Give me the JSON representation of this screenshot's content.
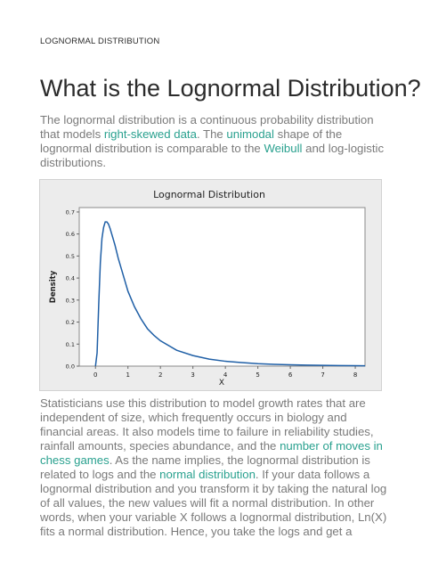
{
  "header": {
    "section_label": "LOGNORMAL DISTRIBUTION"
  },
  "title": "What is the Lognormal Distribution?",
  "intro": {
    "t1": "The lognormal distribution is a continuous probability distribution that models ",
    "link1": "right-skewed data",
    "t2": ". The ",
    "link2": "unimodal",
    "t3": " shape of the lognormal distribution is comparable to the ",
    "link3": "Weibull",
    "t4": " and log-logistic distributions."
  },
  "body": {
    "t1": "Statisticians use this distribution to model growth rates that are independent of size, which frequently occurs in biology and financial areas. It also models time to failure in reliability studies, rainfall amounts, species abundance, and the ",
    "link1": "number of moves in chess games",
    "t2": ". As the name implies, the lognormal distribution is related to logs and the ",
    "link2": "normal distribution",
    "t3": ". If your data follows a lognormal distribution and you transform it by taking the natural log of all values, the new values will fit a normal distribution. In other words, when your variable X follows a lognormal distribution, Ln(X) fits a normal distribution. Hence, you take the logs and get a"
  },
  "colors": {
    "link": "#2aa18f",
    "curve": "#1f5fa6",
    "chart_bg": "#ececec"
  },
  "chart_data": {
    "type": "line",
    "title": "Lognormal Distribution",
    "xlabel": "X",
    "ylabel": "Density",
    "xlim": [
      -0.5,
      8.3
    ],
    "ylim": [
      0,
      0.72
    ],
    "xticks": [
      "0",
      "1",
      "2",
      "3",
      "4",
      "5",
      "6",
      "7",
      "8"
    ],
    "xtick_values": [
      0,
      1,
      2,
      3,
      4,
      5,
      6,
      7,
      8
    ],
    "yticks": [
      "0.0",
      "0.1",
      "0.2",
      "0.3",
      "0.4",
      "0.5",
      "0.6",
      "0.7"
    ],
    "ytick_values": [
      0,
      0.1,
      0.2,
      0.3,
      0.4,
      0.5,
      0.6,
      0.7
    ],
    "grid": false,
    "series": [
      {
        "x": [
          0.0,
          0.05,
          0.1,
          0.15,
          0.2,
          0.25,
          0.3,
          0.35,
          0.4,
          0.45,
          0.5,
          0.6,
          0.7,
          0.8,
          0.9,
          1.0,
          1.2,
          1.4,
          1.6,
          1.8,
          2.0,
          2.5,
          3.0,
          3.5,
          4.0,
          4.5,
          5.0,
          5.5,
          6.0,
          6.5,
          7.0,
          7.5,
          8.0,
          8.3
        ],
        "y": [
          0.0,
          0.06,
          0.28,
          0.47,
          0.58,
          0.63,
          0.655,
          0.655,
          0.645,
          0.625,
          0.6,
          0.55,
          0.49,
          0.44,
          0.39,
          0.34,
          0.27,
          0.215,
          0.17,
          0.14,
          0.115,
          0.072,
          0.048,
          0.032,
          0.022,
          0.016,
          0.011,
          0.008,
          0.006,
          0.0045,
          0.0035,
          0.0026,
          0.002,
          0.0016
        ]
      }
    ]
  }
}
